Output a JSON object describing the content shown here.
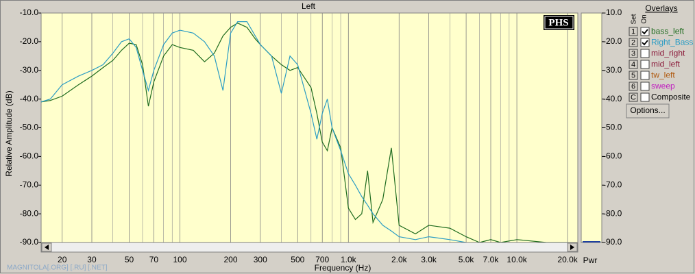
{
  "chart_data": {
    "type": "line",
    "title": "Left",
    "xlabel": "Frequency (Hz)",
    "ylabel": "Relative Amplitude (dB)",
    "y2label": "Pwr",
    "logo": "PHS",
    "watermark": "MAGNITOLA[.ORG] [.RU] [.NET]",
    "xscale": "log",
    "xlim": [
      15,
      23000
    ],
    "ylim": [
      -90,
      -10
    ],
    "xticks": [
      20,
      30,
      50,
      70,
      100,
      200,
      300,
      500,
      700,
      {
        "value": 1000,
        "label": "1.0k"
      },
      {
        "value": 2000,
        "label": "2.0k"
      },
      {
        "value": 3000,
        "label": "3.0k"
      },
      {
        "value": 5000,
        "label": "5.0k"
      },
      {
        "value": 7000,
        "label": "7.0k"
      },
      {
        "value": 10000,
        "label": "10.0k"
      },
      {
        "value": 20000,
        "label": "20.0k"
      }
    ],
    "xminor": [
      40,
      60,
      80,
      90,
      400,
      600,
      800,
      900,
      4000,
      6000,
      8000,
      9000
    ],
    "yticks": [
      {
        "value": -10,
        "label": "-10.0"
      },
      {
        "value": -20,
        "label": "-20.0"
      },
      {
        "value": -30,
        "label": "-30.0"
      },
      {
        "value": -40,
        "label": "-40.0"
      },
      {
        "value": -50,
        "label": "-50.0"
      },
      {
        "value": -60,
        "label": "-60.0"
      },
      {
        "value": -70,
        "label": "-70.0"
      },
      {
        "value": -80,
        "label": "-80.0"
      },
      {
        "value": -90,
        "label": "-90.0"
      }
    ],
    "x": [
      15,
      17,
      20,
      25,
      30,
      35,
      40,
      45,
      50,
      55,
      60,
      65,
      70,
      80,
      90,
      100,
      120,
      140,
      160,
      180,
      200,
      220,
      250,
      280,
      300,
      350,
      400,
      450,
      500,
      600,
      650,
      700,
      750,
      800,
      900,
      1000,
      1100,
      1200,
      1300,
      1400,
      1600,
      1800,
      2000,
      2500,
      3000,
      4000,
      5000,
      6000,
      7000,
      8000,
      10000,
      15000,
      20000
    ],
    "series": [
      {
        "name": "bass_left",
        "color": "#1e6b1e",
        "values": [
          -41,
          -40.5,
          -39,
          -35,
          -32,
          -29,
          -26.5,
          -23,
          -20.5,
          -21,
          -28,
          -42.5,
          -34,
          -25,
          -21,
          -22,
          -23,
          -27,
          -24,
          -18,
          -15,
          -13.5,
          -15,
          -19,
          -21,
          -25,
          -28,
          -30,
          -29,
          -36,
          -45,
          -55,
          -58,
          -50,
          -57,
          -78,
          -82,
          -80,
          -65,
          -83,
          -75,
          -57,
          -84,
          -87,
          -84,
          -85,
          -88,
          -90,
          -89,
          -90,
          -89,
          -90,
          -90
        ]
      },
      {
        "name": "Right_Bass",
        "color": "#2a9cc4",
        "values": [
          -41,
          -40,
          -35,
          -32,
          -30,
          -28,
          -24,
          -20,
          -19,
          -22,
          -30,
          -37,
          -30,
          -21,
          -17,
          -16,
          -17,
          -20,
          -25,
          -37,
          -17,
          -13,
          -13,
          -18,
          -21,
          -25,
          -38,
          -25,
          -28,
          -45,
          -54,
          -45,
          -40,
          -50,
          -58,
          -66,
          -70,
          -74,
          -77,
          -80,
          -84,
          -86,
          -88,
          -89,
          -88,
          -89,
          -90,
          null,
          null,
          null,
          null,
          null,
          null
        ]
      }
    ]
  },
  "ui": {
    "overlays_title": "Overlays",
    "set_label": "Set",
    "on_label": "On",
    "items": [
      {
        "key": "1",
        "name": "bass_left",
        "checked": true,
        "color": "#1e6b1e"
      },
      {
        "key": "2",
        "name": "Right_Bass",
        "checked": true,
        "color": "#2a9cc4"
      },
      {
        "key": "3",
        "name": "mid_right",
        "checked": false,
        "color": "#8b1a3a"
      },
      {
        "key": "4",
        "name": "mid_left",
        "checked": false,
        "color": "#8b1a3a"
      },
      {
        "key": "5",
        "name": "tw_left",
        "checked": false,
        "color": "#b05a10"
      },
      {
        "key": "6",
        "name": "sweep",
        "checked": false,
        "color": "#c020c0"
      },
      {
        "key": "C",
        "name": "Composite",
        "checked": false,
        "color": "#000000"
      }
    ],
    "button": "Options..."
  }
}
